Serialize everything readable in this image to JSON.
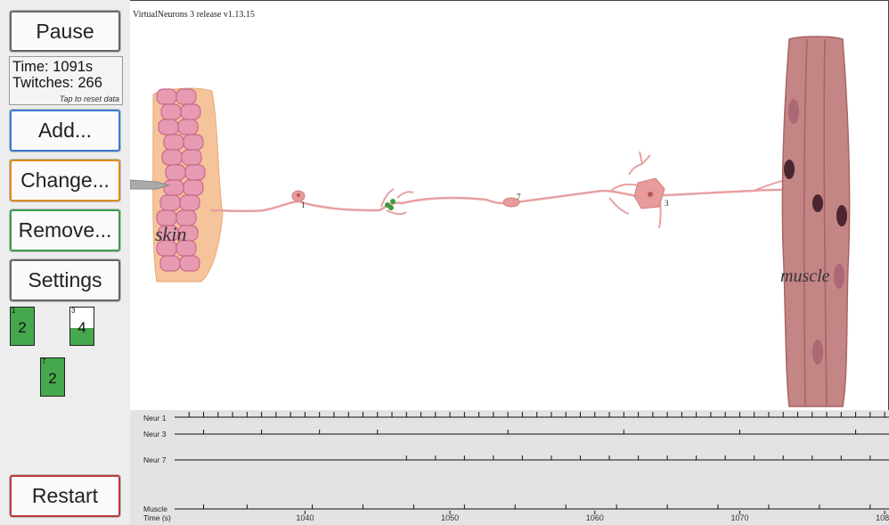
{
  "app": {
    "version": "VirtualNeurons 3 release v1.13.15"
  },
  "sidebar": {
    "pause_label": "Pause",
    "stats": {
      "time": "Time: 1091s",
      "twitches": "Twitches: 266",
      "reset_hint": "Tap to reset data"
    },
    "add_label": "Add...",
    "change_label": "Change...",
    "remove_label": "Remove...",
    "settings_label": "Settings",
    "restart_label": "Restart",
    "neurons": [
      {
        "id": "1",
        "value": "2",
        "level": 1.0
      },
      {
        "id": "3",
        "value": "4",
        "level": 0.45
      },
      {
        "id": "7",
        "value": "2",
        "level": 1.0
      }
    ]
  },
  "scene": {
    "skin_label": "skin",
    "muscle_label": "muscle",
    "neuron_labels": [
      "1",
      "7",
      "3"
    ]
  },
  "traces": {
    "rows": [
      {
        "label": "Neur 1"
      },
      {
        "label": "Neur 3"
      },
      {
        "label": "Neur 7"
      },
      {
        "label": "Muscle"
      }
    ],
    "axis_label": "Time (s)",
    "ticks": [
      "1040",
      "1050",
      "1060",
      "1070",
      "1080"
    ],
    "spikes": {
      "neur1": [
        1032,
        1033,
        1034,
        1035,
        1036,
        1037,
        1038,
        1039,
        1040,
        1041,
        1042,
        1043,
        1044,
        1045,
        1046,
        1047,
        1048,
        1049,
        1050,
        1051,
        1052,
        1053,
        1054,
        1055,
        1056,
        1057,
        1058,
        1059,
        1060,
        1061,
        1062,
        1063,
        1064,
        1065,
        1066,
        1067,
        1068,
        1069,
        1070,
        1071,
        1072,
        1073,
        1074,
        1075,
        1076,
        1077,
        1078,
        1079,
        1080
      ],
      "neur3": [
        1033,
        1037,
        1041,
        1045,
        1054,
        1062,
        1070,
        1078
      ],
      "neur7": [
        1047,
        1049,
        1051,
        1053,
        1055,
        1057,
        1059,
        1061,
        1063,
        1065,
        1067,
        1069,
        1071,
        1073,
        1075,
        1077,
        1079
      ],
      "muscle": [
        1033,
        1036,
        1040.5,
        1044,
        1047.5,
        1051,
        1054.5,
        1058,
        1061.5,
        1065,
        1068.5,
        1072,
        1075.5,
        1079
      ]
    },
    "x_range": [
      1031,
      1080.3
    ]
  }
}
